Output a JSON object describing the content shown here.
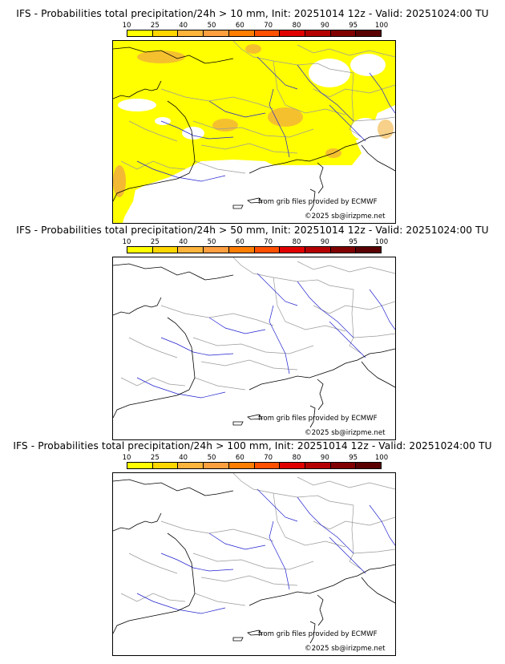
{
  "panels": [
    {
      "title": "IFS - Probabilities total precipitation/24h > 10 mm, Init: 20251014 12z - Valid: 20251024:00 TU",
      "threshold": "10"
    },
    {
      "title": "IFS - Probabilities total precipitation/24h > 50 mm, Init: 20251014 12z - Valid: 20251024:00 TU",
      "threshold": "50"
    },
    {
      "title": "IFS - Probabilities total precipitation/24h > 100 mm, Init: 20251014 12z - Valid: 20251024:00 TU",
      "threshold": "100"
    }
  ],
  "colorbar": {
    "ticks": [
      "10",
      "25",
      "40",
      "50",
      "60",
      "70",
      "80",
      "90",
      "95",
      "100"
    ],
    "colors": [
      "#ffff00",
      "#ffd700",
      "#ffb43c",
      "#ffa040",
      "#ff7e00",
      "#ff5000",
      "#e00000",
      "#b40000",
      "#800000",
      "#5a0000"
    ]
  },
  "credits": {
    "source": "from grib files provided by ECMWF",
    "copyright": "©2025 sb@irizpme.net"
  },
  "colors": {
    "coast": "#000000",
    "borders": "#9a9a9a",
    "rivers": "#2020d0",
    "rain_yellow": "#ffff00",
    "rain_orange": "#f2b03a"
  }
}
